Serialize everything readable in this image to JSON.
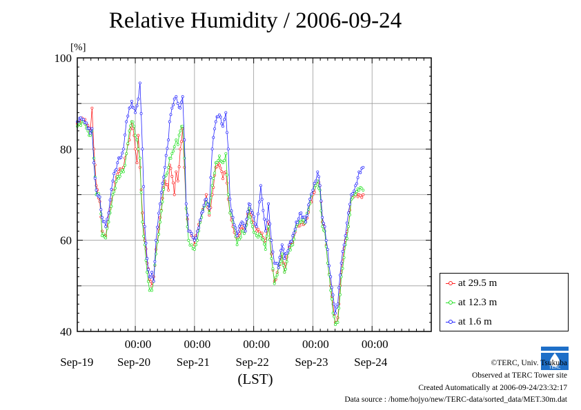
{
  "title": "Relative Humidity / 2006-09-24",
  "chart_data": {
    "type": "line",
    "title": "Relative Humidity / 2006-09-24",
    "ylabel": "[%]",
    "xlabel": "(LST)",
    "ylim": [
      40,
      100
    ],
    "yticks": [
      40,
      60,
      80,
      100
    ],
    "xlim": [
      -0.98,
      5.0
    ],
    "x_unit": "days from 2006-09-20 00:00 LST",
    "xticks": [
      {
        "x": 0,
        "time": "00:00",
        "date": "Sep-20"
      },
      {
        "x": 1,
        "time": "00:00",
        "date": "Sep-21"
      },
      {
        "x": 2,
        "time": "00:00",
        "date": "Sep-22"
      },
      {
        "x": 3,
        "time": "00:00",
        "date": "Sep-23"
      },
      {
        "x": 4,
        "time": "00:00",
        "date": "Sep-24"
      }
    ],
    "first_date_label": "Sep-19",
    "grid": true,
    "legend_position": "bottom-right outside",
    "series": [
      {
        "name": "at 29.5 m",
        "color": "#ff2020",
        "points": [
          [
            -0.98,
            85.6
          ],
          [
            -0.9,
            86.8
          ],
          [
            -0.85,
            86.5
          ],
          [
            -0.8,
            85.2
          ],
          [
            -0.76,
            84.0
          ],
          [
            -0.73,
            89.0
          ],
          [
            -0.7,
            80.0
          ],
          [
            -0.66,
            72.0
          ],
          [
            -0.6,
            68.5
          ],
          [
            -0.56,
            62.0
          ],
          [
            -0.5,
            61.0
          ],
          [
            -0.45,
            66.0
          ],
          [
            -0.38,
            70.0
          ],
          [
            -0.3,
            74.5
          ],
          [
            -0.2,
            76.0
          ],
          [
            -0.15,
            79.0
          ],
          [
            -0.1,
            82.0
          ],
          [
            -0.06,
            86.0
          ],
          [
            -0.02,
            83.0
          ],
          [
            0.0,
            80.0
          ],
          [
            0.03,
            77.0
          ],
          [
            0.05,
            83.0
          ],
          [
            0.08,
            76.0
          ],
          [
            0.12,
            66.0
          ],
          [
            0.16,
            60.0
          ],
          [
            0.2,
            55.0
          ],
          [
            0.24,
            51.5
          ],
          [
            0.28,
            50.0
          ],
          [
            0.31,
            52.0
          ],
          [
            0.35,
            58.0
          ],
          [
            0.42,
            65.0
          ],
          [
            0.5,
            73.0
          ],
          [
            0.56,
            71.0
          ],
          [
            0.58,
            76.5
          ],
          [
            0.62,
            74.0
          ],
          [
            0.66,
            70.0
          ],
          [
            0.69,
            75.0
          ],
          [
            0.72,
            73.0
          ],
          [
            0.76,
            80.0
          ],
          [
            0.8,
            84.5
          ],
          [
            0.83,
            76.0
          ],
          [
            0.86,
            67.0
          ],
          [
            0.9,
            62.0
          ],
          [
            0.95,
            61.0
          ],
          [
            1.0,
            59.0
          ],
          [
            1.05,
            62.0
          ],
          [
            1.12,
            66.0
          ],
          [
            1.2,
            70.0
          ],
          [
            1.25,
            65.5
          ],
          [
            1.3,
            70.0
          ],
          [
            1.36,
            76.0
          ],
          [
            1.42,
            76.5
          ],
          [
            1.48,
            73.5
          ],
          [
            1.53,
            75.0
          ],
          [
            1.57,
            69.0
          ],
          [
            1.6,
            66.0
          ],
          [
            1.65,
            63.0
          ],
          [
            1.72,
            60.5
          ],
          [
            1.8,
            63.0
          ],
          [
            1.86,
            62.0
          ],
          [
            1.92,
            67.0
          ],
          [
            1.98,
            64.0
          ],
          [
            2.05,
            62.0
          ],
          [
            2.12,
            61.5
          ],
          [
            2.2,
            60.0
          ],
          [
            2.25,
            64.0
          ],
          [
            2.3,
            57.0
          ],
          [
            2.35,
            51.0
          ],
          [
            2.42,
            54.0
          ],
          [
            2.48,
            57.0
          ],
          [
            2.52,
            53.0
          ],
          [
            2.6,
            58.5
          ],
          [
            2.66,
            59.5
          ],
          [
            2.72,
            63.0
          ],
          [
            2.8,
            64.0
          ],
          [
            2.88,
            64.0
          ],
          [
            2.95,
            68.0
          ],
          [
            3.0,
            70.0
          ],
          [
            3.05,
            72.0
          ],
          [
            3.08,
            73.0
          ],
          [
            3.12,
            72.0
          ],
          [
            3.16,
            64.0
          ],
          [
            3.2,
            62.0
          ],
          [
            3.25,
            55.0
          ],
          [
            3.3,
            50.0
          ],
          [
            3.34,
            46.0
          ],
          [
            3.38,
            42.0
          ],
          [
            3.42,
            43.0
          ],
          [
            3.48,
            53.0
          ],
          [
            3.55,
            60.0
          ],
          [
            3.6,
            63.0
          ],
          [
            3.65,
            69.0
          ],
          [
            3.72,
            70.0
          ],
          [
            3.78,
            70.0
          ],
          [
            3.85,
            70.0
          ]
        ]
      },
      {
        "name": "at 12.3 m",
        "color": "#20e020",
        "points": [
          [
            -0.98,
            85.0
          ],
          [
            -0.9,
            86.0
          ],
          [
            -0.85,
            85.5
          ],
          [
            -0.8,
            84.0
          ],
          [
            -0.76,
            83.0
          ],
          [
            -0.73,
            84.0
          ],
          [
            -0.7,
            78.0
          ],
          [
            -0.66,
            70.0
          ],
          [
            -0.6,
            69.5
          ],
          [
            -0.56,
            61.0
          ],
          [
            -0.5,
            60.5
          ],
          [
            -0.45,
            64.0
          ],
          [
            -0.38,
            70.0
          ],
          [
            -0.3,
            74.0
          ],
          [
            -0.2,
            75.0
          ],
          [
            -0.15,
            79.0
          ],
          [
            -0.1,
            84.0
          ],
          [
            -0.06,
            86.0
          ],
          [
            -0.02,
            85.0
          ],
          [
            0.0,
            83.0
          ],
          [
            0.03,
            82.0
          ],
          [
            0.05,
            80.0
          ],
          [
            0.08,
            78.0
          ],
          [
            0.12,
            64.0
          ],
          [
            0.16,
            59.0
          ],
          [
            0.2,
            53.0
          ],
          [
            0.24,
            49.0
          ],
          [
            0.28,
            49.0
          ],
          [
            0.31,
            51.0
          ],
          [
            0.35,
            57.0
          ],
          [
            0.42,
            64.0
          ],
          [
            0.5,
            74.0
          ],
          [
            0.56,
            76.0
          ],
          [
            0.58,
            78.0
          ],
          [
            0.62,
            79.0
          ],
          [
            0.66,
            80.5
          ],
          [
            0.69,
            82.0
          ],
          [
            0.72,
            81.0
          ],
          [
            0.76,
            84.0
          ],
          [
            0.8,
            85.0
          ],
          [
            0.83,
            78.0
          ],
          [
            0.86,
            67.0
          ],
          [
            0.9,
            60.0
          ],
          [
            0.95,
            59.0
          ],
          [
            1.0,
            58.0
          ],
          [
            1.05,
            60.0
          ],
          [
            1.12,
            65.0
          ],
          [
            1.2,
            69.0
          ],
          [
            1.25,
            66.0
          ],
          [
            1.3,
            72.0
          ],
          [
            1.36,
            77.0
          ],
          [
            1.42,
            78.5
          ],
          [
            1.48,
            77.0
          ],
          [
            1.53,
            79.0
          ],
          [
            1.57,
            70.0
          ],
          [
            1.6,
            66.0
          ],
          [
            1.65,
            64.0
          ],
          [
            1.72,
            59.0
          ],
          [
            1.8,
            62.0
          ],
          [
            1.86,
            62.0
          ],
          [
            1.92,
            67.0
          ],
          [
            1.98,
            63.0
          ],
          [
            2.05,
            61.0
          ],
          [
            2.12,
            61.0
          ],
          [
            2.2,
            58.0
          ],
          [
            2.25,
            63.0
          ],
          [
            2.3,
            56.0
          ],
          [
            2.35,
            50.5
          ],
          [
            2.42,
            54.0
          ],
          [
            2.48,
            57.0
          ],
          [
            2.52,
            53.0
          ],
          [
            2.6,
            58.0
          ],
          [
            2.66,
            59.0
          ],
          [
            2.72,
            63.0
          ],
          [
            2.8,
            64.0
          ],
          [
            2.88,
            64.0
          ],
          [
            2.95,
            68.0
          ],
          [
            3.0,
            71.0
          ],
          [
            3.05,
            72.0
          ],
          [
            3.08,
            73.0
          ],
          [
            3.12,
            71.0
          ],
          [
            3.16,
            63.0
          ],
          [
            3.2,
            62.0
          ],
          [
            3.25,
            55.0
          ],
          [
            3.3,
            49.0
          ],
          [
            3.34,
            44.0
          ],
          [
            3.38,
            41.5
          ],
          [
            3.42,
            42.0
          ],
          [
            3.48,
            52.0
          ],
          [
            3.55,
            59.0
          ],
          [
            3.6,
            63.0
          ],
          [
            3.65,
            69.0
          ],
          [
            3.72,
            70.0
          ],
          [
            3.78,
            71.0
          ],
          [
            3.85,
            71.0
          ]
        ]
      },
      {
        "name": "at 1.6 m",
        "color": "#2020ff",
        "points": [
          [
            -0.98,
            86.0
          ],
          [
            -0.9,
            86.5
          ],
          [
            -0.85,
            85.8
          ],
          [
            -0.8,
            84.5
          ],
          [
            -0.76,
            83.5
          ],
          [
            -0.73,
            84.5
          ],
          [
            -0.7,
            77.0
          ],
          [
            -0.66,
            71.0
          ],
          [
            -0.6,
            69.5
          ],
          [
            -0.56,
            65.0
          ],
          [
            -0.5,
            63.0
          ],
          [
            -0.45,
            66.0
          ],
          [
            -0.38,
            73.0
          ],
          [
            -0.3,
            77.0
          ],
          [
            -0.2,
            80.0
          ],
          [
            -0.15,
            86.0
          ],
          [
            -0.1,
            89.0
          ],
          [
            -0.06,
            90.5
          ],
          [
            -0.02,
            89.0
          ],
          [
            0.0,
            88.0
          ],
          [
            0.03,
            89.5
          ],
          [
            0.05,
            91.0
          ],
          [
            0.08,
            94.5
          ],
          [
            0.12,
            80.0
          ],
          [
            0.16,
            63.0
          ],
          [
            0.2,
            56.0
          ],
          [
            0.24,
            52.0
          ],
          [
            0.28,
            53.0
          ],
          [
            0.31,
            51.0
          ],
          [
            0.35,
            60.0
          ],
          [
            0.42,
            68.0
          ],
          [
            0.5,
            76.0
          ],
          [
            0.56,
            82.0
          ],
          [
            0.58,
            86.0
          ],
          [
            0.62,
            89.0
          ],
          [
            0.66,
            91.0
          ],
          [
            0.69,
            91.5
          ],
          [
            0.72,
            90.0
          ],
          [
            0.76,
            89.0
          ],
          [
            0.8,
            91.5
          ],
          [
            0.83,
            82.0
          ],
          [
            0.86,
            68.0
          ],
          [
            0.9,
            62.0
          ],
          [
            0.95,
            61.5
          ],
          [
            1.0,
            60.0
          ],
          [
            1.05,
            62.0
          ],
          [
            1.12,
            66.0
          ],
          [
            1.2,
            69.0
          ],
          [
            1.25,
            67.0
          ],
          [
            1.3,
            80.0
          ],
          [
            1.36,
            86.0
          ],
          [
            1.42,
            87.5
          ],
          [
            1.48,
            85.0
          ],
          [
            1.53,
            88.0
          ],
          [
            1.57,
            80.0
          ],
          [
            1.6,
            69.0
          ],
          [
            1.65,
            65.0
          ],
          [
            1.72,
            61.0
          ],
          [
            1.8,
            64.0
          ],
          [
            1.86,
            62.0
          ],
          [
            1.92,
            68.0
          ],
          [
            1.98,
            66.0
          ],
          [
            2.05,
            63.0
          ],
          [
            2.12,
            72.0
          ],
          [
            2.2,
            62.0
          ],
          [
            2.25,
            68.0
          ],
          [
            2.3,
            60.0
          ],
          [
            2.35,
            55.0
          ],
          [
            2.42,
            54.0
          ],
          [
            2.48,
            59.0
          ],
          [
            2.52,
            56.0
          ],
          [
            2.6,
            59.0
          ],
          [
            2.66,
            61.0
          ],
          [
            2.72,
            64.0
          ],
          [
            2.8,
            66.0
          ],
          [
            2.88,
            64.0
          ],
          [
            2.95,
            69.0
          ],
          [
            3.0,
            71.0
          ],
          [
            3.05,
            73.0
          ],
          [
            3.08,
            75.0
          ],
          [
            3.12,
            72.0
          ],
          [
            3.16,
            65.0
          ],
          [
            3.2,
            63.0
          ],
          [
            3.25,
            58.0
          ],
          [
            3.3,
            52.0
          ],
          [
            3.34,
            48.0
          ],
          [
            3.38,
            44.0
          ],
          [
            3.42,
            46.0
          ],
          [
            3.48,
            55.0
          ],
          [
            3.55,
            61.0
          ],
          [
            3.6,
            66.0
          ],
          [
            3.65,
            70.0
          ],
          [
            3.72,
            72.0
          ],
          [
            3.78,
            75.0
          ],
          [
            3.85,
            76.0
          ]
        ]
      }
    ]
  },
  "legend": [
    {
      "label": "at 29.5 m",
      "color": "#ff2020"
    },
    {
      "label": "at 12.3 m",
      "color": "#20e020"
    },
    {
      "label": "at 1.6 m",
      "color": "#2020ff"
    }
  ],
  "footer": {
    "copyright": "©TERC, Univ. Tsukuba",
    "observed": "Observed at TERC Tower site",
    "created": "Created Automatically at 2006-09-24/23:32:17",
    "source": "Data source : /home/hojyo/new/TERC-data/sorted_data/MET.30m.dat"
  },
  "logo": {
    "text": "TERC",
    "color": "#1e6fc8",
    "icon": "terc-logo-icon"
  }
}
